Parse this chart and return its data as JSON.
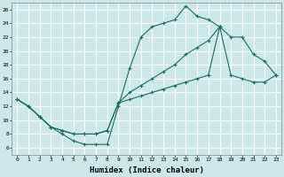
{
  "xlabel": "Humidex (Indice chaleur)",
  "bg_color": "#cce8e8",
  "grid_color": "#ffffff",
  "line_color": "#1a6e60",
  "xlim": [
    -0.5,
    23.5
  ],
  "ylim": [
    5.0,
    27.0
  ],
  "xticks": [
    0,
    1,
    2,
    3,
    4,
    5,
    6,
    7,
    8,
    9,
    10,
    11,
    12,
    13,
    14,
    15,
    16,
    17,
    18,
    19,
    20,
    21,
    22,
    23
  ],
  "yticks": [
    6,
    8,
    10,
    12,
    14,
    16,
    18,
    20,
    22,
    24,
    26
  ],
  "line1_x": [
    0,
    1,
    2,
    3,
    4,
    5,
    6,
    7,
    8,
    9,
    10,
    11,
    12,
    13,
    14,
    15,
    16,
    17,
    18
  ],
  "line1_y": [
    13,
    12,
    10.5,
    9,
    8,
    7,
    6.5,
    6.5,
    6.5,
    12,
    17.5,
    22,
    23.5,
    24,
    24.5,
    26.5,
    25,
    24.5,
    23.5
  ],
  "line2_x": [
    0,
    1,
    2,
    3,
    4,
    5,
    6,
    7,
    8,
    9,
    10,
    11,
    12,
    13,
    14,
    15,
    16,
    17,
    18,
    19,
    20,
    21,
    22,
    23
  ],
  "line2_y": [
    13,
    12,
    10.5,
    9.0,
    8.5,
    8.0,
    8.0,
    8.0,
    8.5,
    12.5,
    14.0,
    15.0,
    16.0,
    17.0,
    18.0,
    19.5,
    20.5,
    21.5,
    23.5,
    22.0,
    22.0,
    19.5,
    18.5,
    16.5
  ],
  "line3_x": [
    0,
    1,
    2,
    3,
    4,
    5,
    6,
    7,
    8,
    9,
    10,
    11,
    12,
    13,
    14,
    15,
    16,
    17,
    18,
    19,
    20,
    21,
    22,
    23
  ],
  "line3_y": [
    13,
    12,
    10.5,
    9.0,
    8.5,
    8.0,
    8.0,
    8.0,
    8.5,
    12.5,
    13.0,
    13.5,
    14.0,
    14.5,
    15.0,
    15.5,
    16.0,
    16.5,
    23.5,
    16.5,
    16.0,
    15.5,
    15.5,
    16.5
  ]
}
